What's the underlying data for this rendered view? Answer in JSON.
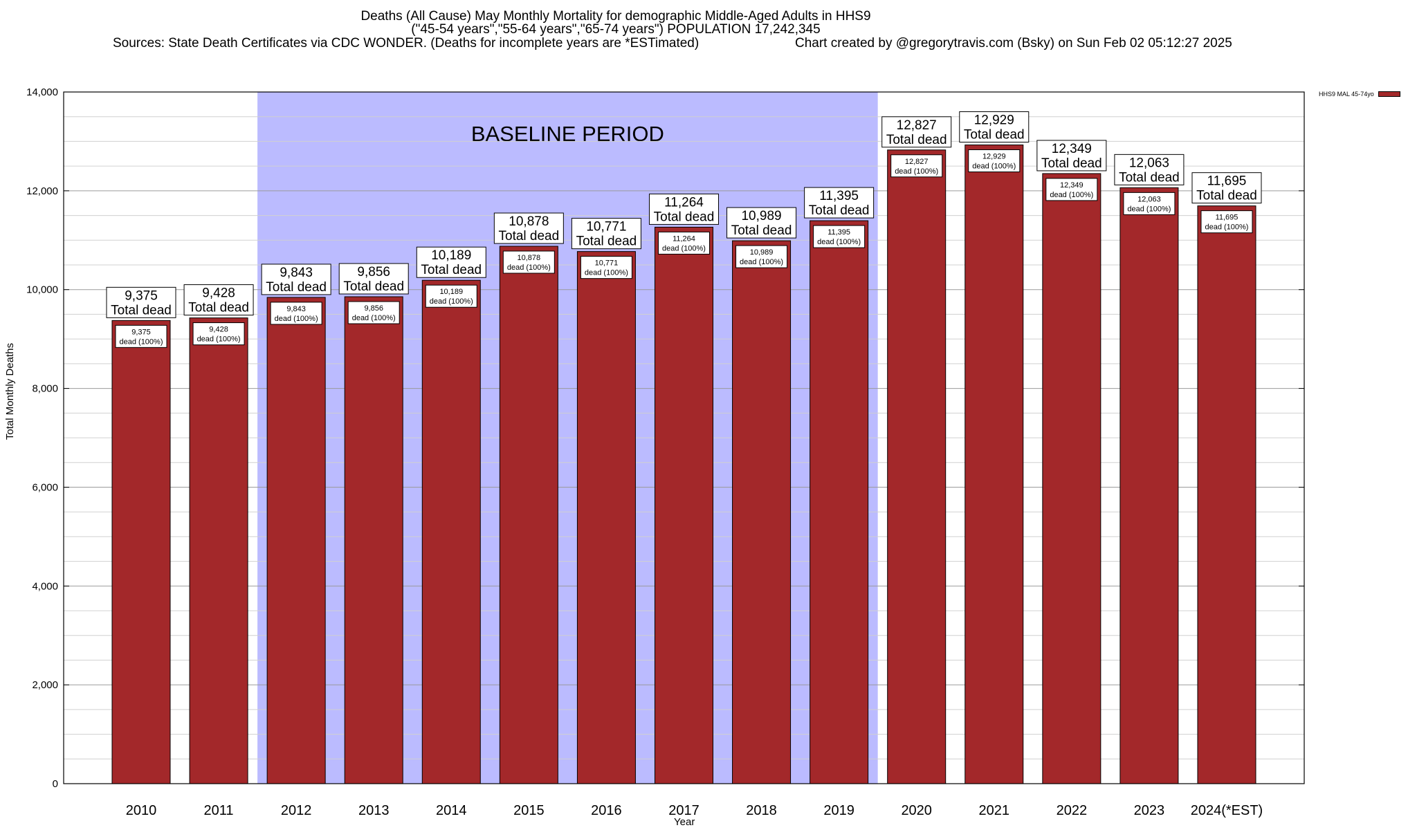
{
  "chart_data": {
    "type": "bar",
    "title_lines": [
      "Deaths (All Cause) May Monthly Mortality for demographic Middle-Aged Adults in HHS9",
      "(\"45-54 years\",\"55-64 years\",\"65-74 years\") POPULATION 17,242,345"
    ],
    "source_left": "Sources: State Death Certificates via CDC WONDER. (Deaths for incomplete years are *ESTimated)",
    "source_right": "Chart created by @gregorytravis.com (Bsky) on Sun Feb 02 05:12:27 2025",
    "xlabel": "Year",
    "ylabel": "Total Monthly Deaths",
    "ylim": [
      0,
      14000
    ],
    "y_ticks": [
      "0",
      "2,000",
      "4,000",
      "6,000",
      "8,000",
      "10,000",
      "12,000",
      "14,000"
    ],
    "grid": true,
    "legend_position": "right",
    "series": [
      {
        "name": "HHS9 MAL 45-74yo",
        "color": "#a3282a"
      }
    ],
    "categories": [
      "2010",
      "2011",
      "2012",
      "2013",
      "2014",
      "2015",
      "2016",
      "2017",
      "2018",
      "2019",
      "2020",
      "2021",
      "2022",
      "2023",
      "2024(*EST)"
    ],
    "values": [
      9375,
      9428,
      9843,
      9856,
      10189,
      10878,
      10771,
      11264,
      10989,
      11395,
      12827,
      12929,
      12349,
      12063,
      11695
    ],
    "value_labels": [
      "9,375",
      "9,428",
      "9,843",
      "9,856",
      "10,189",
      "10,878",
      "10,771",
      "11,264",
      "10,989",
      "11,395",
      "12,827",
      "12,929",
      "12,349",
      "12,063",
      "11,695"
    ],
    "top_label_suffix": "Total dead",
    "inner_label_suffix": "dead (100%)",
    "baseline": {
      "label": "BASELINE PERIOD",
      "start": "2012",
      "end": "2019",
      "color": "#bbbbff"
    }
  }
}
